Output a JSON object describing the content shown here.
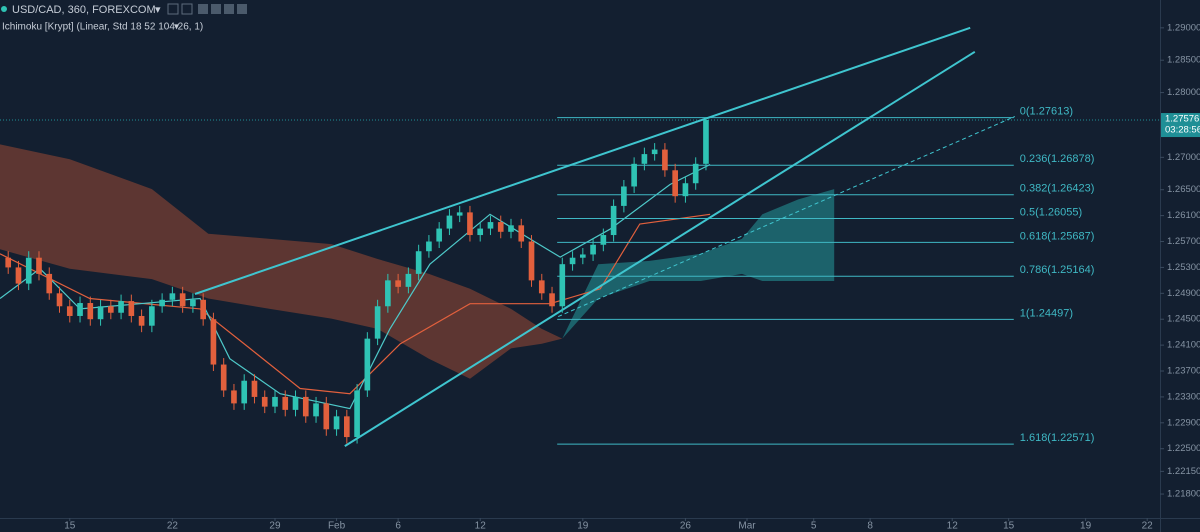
{
  "chart_data": {
    "type": "candlestick",
    "title": "USD/CAD, 360, FOREXCOM",
    "subtitle": "Ichimoku [Krypt] (Linear, Std 18 52 104 26, 1)",
    "up_color": "#2fc3b4",
    "down_color": "#e2603d",
    "x": [
      -12,
      -10,
      -8,
      -6,
      -4,
      -2,
      0,
      2,
      4,
      6,
      8,
      10,
      12,
      14,
      16,
      18,
      20,
      22,
      24,
      26,
      28,
      30,
      32,
      34,
      36,
      38,
      40,
      42,
      44,
      46,
      48,
      50,
      52,
      54,
      56,
      58,
      60,
      62,
      64,
      66,
      68,
      70,
      72,
      74,
      76,
      78,
      80,
      82,
      84,
      86,
      88,
      90,
      92,
      94,
      96,
      98,
      100,
      102,
      104,
      106,
      108,
      110,
      112,
      114,
      116,
      118,
      120,
      122,
      124
    ],
    "open": [
      1.2545,
      1.253,
      1.2505,
      1.2545,
      1.252,
      1.249,
      1.247,
      1.2455,
      1.2475,
      1.245,
      1.247,
      1.246,
      1.2478,
      1.2455,
      1.244,
      1.247,
      1.248,
      1.249,
      1.247,
      1.248,
      1.245,
      1.238,
      1.234,
      1.232,
      1.2355,
      1.233,
      1.2315,
      1.233,
      1.231,
      1.233,
      1.23,
      1.232,
      1.228,
      1.23,
      1.2268,
      1.234,
      1.242,
      1.247,
      1.251,
      1.25,
      1.252,
      1.2555,
      1.257,
      1.259,
      1.261,
      1.2615,
      1.258,
      1.259,
      1.26,
      1.2585,
      1.2595,
      1.257,
      1.251,
      1.249,
      1.247,
      1.2535,
      1.2545,
      1.255,
      1.2565,
      1.258,
      1.2625,
      1.2655,
      1.269,
      1.2705,
      1.2712,
      1.268,
      1.264,
      1.266,
      1.269
    ],
    "high": [
      1.2555,
      1.254,
      1.2555,
      1.2555,
      1.253,
      1.25,
      1.248,
      1.2485,
      1.2485,
      1.248,
      1.248,
      1.2488,
      1.2488,
      1.2465,
      1.248,
      1.249,
      1.25,
      1.25,
      1.249,
      1.249,
      1.246,
      1.239,
      1.235,
      1.2365,
      1.2365,
      1.234,
      1.234,
      1.234,
      1.234,
      1.234,
      1.233,
      1.233,
      1.231,
      1.231,
      1.235,
      1.243,
      1.248,
      1.252,
      1.252,
      1.253,
      1.2565,
      1.258,
      1.26,
      1.262,
      1.2625,
      1.2625,
      1.26,
      1.261,
      1.261,
      1.2605,
      1.2605,
      1.258,
      1.252,
      1.25,
      1.2545,
      1.2555,
      1.256,
      1.2575,
      1.259,
      1.2635,
      1.2665,
      1.27,
      1.2715,
      1.2722,
      1.2722,
      1.269,
      1.267,
      1.27,
      1.2762
    ],
    "low": [
      1.252,
      1.2495,
      1.2495,
      1.251,
      1.248,
      1.246,
      1.2445,
      1.2445,
      1.244,
      1.244,
      1.245,
      1.245,
      1.2445,
      1.243,
      1.243,
      1.246,
      1.247,
      1.246,
      1.246,
      1.244,
      1.237,
      1.233,
      1.231,
      1.231,
      1.232,
      1.2305,
      1.2305,
      1.23,
      1.23,
      1.229,
      1.229,
      1.227,
      1.227,
      1.2258,
      1.2258,
      1.233,
      1.241,
      1.246,
      1.249,
      1.249,
      1.251,
      1.2545,
      1.256,
      1.258,
      1.26,
      1.257,
      1.257,
      1.258,
      1.2575,
      1.2575,
      1.256,
      1.25,
      1.248,
      1.246,
      1.246,
      1.2525,
      1.2535,
      1.254,
      1.2555,
      1.257,
      1.2615,
      1.2645,
      1.268,
      1.2695,
      1.267,
      1.263,
      1.263,
      1.265,
      1.268
    ],
    "close": [
      1.253,
      1.2505,
      1.2545,
      1.252,
      1.249,
      1.247,
      1.2455,
      1.2475,
      1.245,
      1.247,
      1.246,
      1.2478,
      1.2455,
      1.244,
      1.247,
      1.248,
      1.249,
      1.247,
      1.248,
      1.245,
      1.238,
      1.234,
      1.232,
      1.2355,
      1.233,
      1.2315,
      1.233,
      1.231,
      1.233,
      1.23,
      1.232,
      1.228,
      1.23,
      1.2268,
      1.234,
      1.242,
      1.247,
      1.251,
      1.25,
      1.252,
      1.2555,
      1.257,
      1.259,
      1.261,
      1.2615,
      1.258,
      1.259,
      1.26,
      1.2585,
      1.2595,
      1.257,
      1.251,
      1.249,
      1.247,
      1.2535,
      1.2545,
      1.255,
      1.2565,
      1.258,
      1.2625,
      1.2655,
      1.269,
      1.2705,
      1.2712,
      1.268,
      1.264,
      1.266,
      1.269,
      1.27576
    ],
    "xlim": [
      -13.6,
      212.5
    ],
    "xticks": [
      {
        "value": 0,
        "label": "15"
      },
      {
        "value": 20,
        "label": "22"
      },
      {
        "value": 40,
        "label": "29"
      },
      {
        "value": 52,
        "label": "Feb"
      },
      {
        "value": 64,
        "label": "6"
      },
      {
        "value": 80,
        "label": "12"
      },
      {
        "value": 100,
        "label": "19"
      },
      {
        "value": 120,
        "label": "26"
      },
      {
        "value": 132,
        "label": "Mar"
      },
      {
        "value": 145,
        "label": "5"
      },
      {
        "value": 156,
        "label": "8"
      },
      {
        "value": 172,
        "label": "12"
      },
      {
        "value": 183,
        "label": "15"
      },
      {
        "value": 198,
        "label": "19"
      },
      {
        "value": 210,
        "label": "22"
      }
    ],
    "ylim": [
      1.2143,
      1.2943
    ],
    "yticks": [
      {
        "value": 1.29,
        "label": "1.29000"
      },
      {
        "value": 1.285,
        "label": "1.28500"
      },
      {
        "value": 1.28,
        "label": "1.28000"
      },
      {
        "value": 1.27,
        "label": "1.27000"
      },
      {
        "value": 1.265,
        "label": "1.26500"
      },
      {
        "value": 1.261,
        "label": "1.26100"
      },
      {
        "value": 1.257,
        "label": "1.25700"
      },
      {
        "value": 1.253,
        "label": "1.25300"
      },
      {
        "value": 1.249,
        "label": "1.24900"
      },
      {
        "value": 1.245,
        "label": "1.24500"
      },
      {
        "value": 1.241,
        "label": "1.24100"
      },
      {
        "value": 1.237,
        "label": "1.23700"
      },
      {
        "value": 1.233,
        "label": "1.23300"
      },
      {
        "value": 1.229,
        "label": "1.22900"
      },
      {
        "value": 1.225,
        "label": "1.22500"
      },
      {
        "value": 1.2215,
        "label": "1.22150"
      },
      {
        "value": 1.218,
        "label": "1.21800"
      }
    ],
    "grid": false,
    "last_price": 1.27576,
    "last_price_color": "#1f8f96",
    "countdown": "03:28:56",
    "fib": {
      "color": "#3fb8c4",
      "x": [
        95,
        184
      ],
      "levels": [
        {
          "value": 1.27613,
          "label": "0(1.27613)"
        },
        {
          "value": 1.26878,
          "label": "0.236(1.26878)"
        },
        {
          "value": 1.26423,
          "label": "0.382(1.26423)"
        },
        {
          "value": 1.26055,
          "label": "0.5(1.26055)"
        },
        {
          "value": 1.25687,
          "label": "0.618(1.25687)"
        },
        {
          "value": 1.25164,
          "label": "0.786(1.25164)"
        },
        {
          "value": 1.24497,
          "label": "1(1.24497)"
        },
        {
          "value": 1.22571,
          "label": "1.618(1.22571)"
        }
      ]
    },
    "trend_lines": [
      {
        "color": "#3fc5cf",
        "dashed": false,
        "x": [
          24.4,
          175.5
        ],
        "values": [
          1.2489,
          1.29
        ]
      },
      {
        "color": "#3fc5cf",
        "dashed": false,
        "x": [
          53.6,
          176.4
        ],
        "values": [
          1.2254,
          1.2863
        ]
      },
      {
        "color": "#3fc5cf",
        "dashed": true,
        "x": [
          95.2,
          184.2
        ],
        "values": [
          1.2454,
          1.2763
        ]
      }
    ],
    "ichimoku": {
      "clouds": [
        {
          "color": "#6b3b33",
          "x": [
            -13.6,
            0,
            16,
            27,
            39,
            51,
            60,
            70,
            78,
            86,
            92,
            96
          ],
          "upper": [
            1.272,
            1.2697,
            1.2651,
            1.2582,
            1.2574,
            1.2566,
            1.2543,
            1.252,
            1.2497,
            1.2466,
            1.2435,
            1.242
          ],
          "lower": [
            1.2558,
            1.2528,
            1.2512,
            1.2482,
            1.2466,
            1.2451,
            1.2435,
            1.2389,
            1.2358,
            1.2405,
            1.2412,
            1.242
          ]
        },
        {
          "color": "#1f6f76",
          "x": [
            96,
            103,
            113,
            123,
            131,
            135,
            142,
            149
          ],
          "upper": [
            1.242,
            1.2535,
            1.254,
            1.2551,
            1.2574,
            1.2612,
            1.2635,
            1.2651
          ],
          "lower": [
            1.242,
            1.2482,
            1.2509,
            1.2509,
            1.252,
            1.2509,
            1.2509,
            1.2509
          ]
        }
      ],
      "lines": [
        {
          "color": "#e2603d",
          "x": [
            -13.6,
            3.9,
            25.4,
            35.1,
            44.9,
            54.6,
            64.4,
            78,
            93.6,
            103.4,
            111.1,
            124.8
          ],
          "values": [
            1.2551,
            1.2482,
            1.2466,
            1.2405,
            1.2343,
            1.2335,
            1.2412,
            1.2474,
            1.2474,
            1.2497,
            1.2597,
            1.2612
          ]
        },
        {
          "color": "#4ec9c9",
          "x": [
            -13.6,
            -5.8,
            2,
            25.4,
            31.2,
            41,
            54.6,
            62.4,
            70.2,
            81.9,
            89.7,
            95.6,
            105.3,
            117,
            124.8
          ],
          "values": [
            1.2482,
            1.2528,
            1.2466,
            1.2482,
            1.2389,
            1.2335,
            1.2312,
            1.2435,
            1.2535,
            1.2612,
            1.2574,
            1.2546,
            1.2589,
            1.2658,
            1.2689
          ]
        }
      ]
    }
  }
}
